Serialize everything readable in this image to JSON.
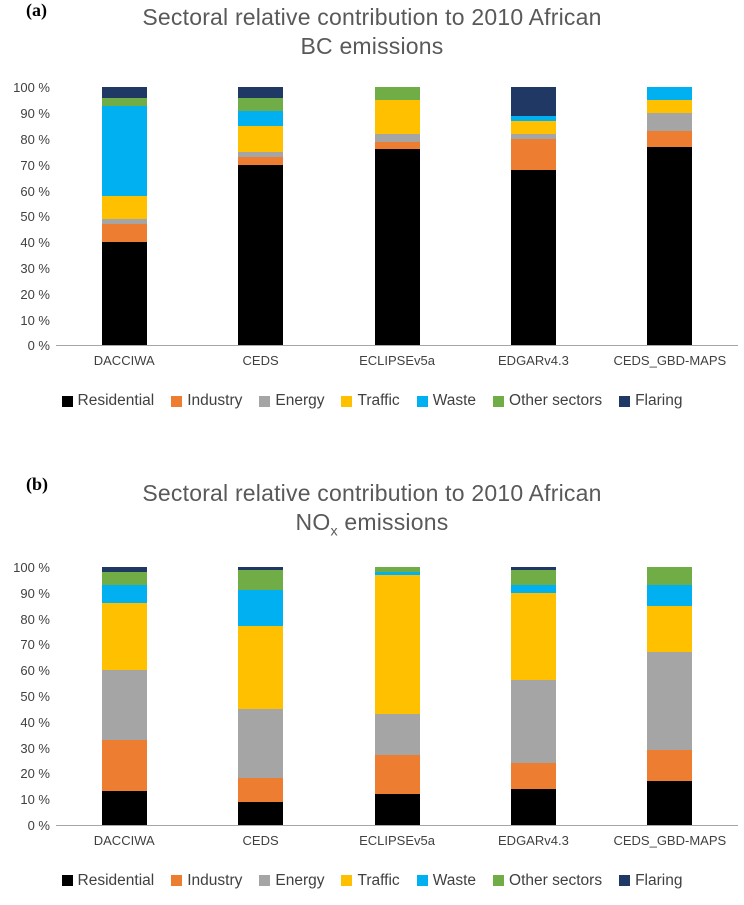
{
  "figure": {
    "panels": [
      {
        "label": "(a)"
      },
      {
        "label": "(b)"
      }
    ]
  },
  "chart_data": [
    {
      "type": "bar",
      "stacked": true,
      "panel_label": "(a)",
      "title": "Sectoral relative contribution to 2010 African BC emissions",
      "title_line1": "Sectoral relative contribution to 2010 African",
      "title_line2_parts": [
        {
          "text": "BC emissions"
        }
      ],
      "categories": [
        "DACCIWA",
        "CEDS",
        "ECLIPSEv5a",
        "EDGARv4.3",
        "CEDS_GBD-MAPS"
      ],
      "series": [
        {
          "name": "Residential",
          "color": "#000000",
          "values": [
            40,
            70,
            76,
            68,
            77
          ]
        },
        {
          "name": "Industry",
          "color": "#ED7D31",
          "values": [
            7,
            3,
            3,
            12,
            6
          ]
        },
        {
          "name": "Energy",
          "color": "#A5A5A5",
          "values": [
            2,
            2,
            3,
            2,
            7
          ]
        },
        {
          "name": "Traffic",
          "color": "#FFC000",
          "values": [
            9,
            10,
            13,
            5,
            5
          ]
        },
        {
          "name": "Waste",
          "color": "#00B0F0",
          "values": [
            35,
            6,
            0,
            2,
            5
          ]
        },
        {
          "name": "Other sectors",
          "color": "#70AD47",
          "values": [
            3,
            5,
            5,
            0,
            0
          ]
        },
        {
          "name": "Flaring",
          "color": "#1F3864",
          "values": [
            4,
            4,
            0,
            11,
            0
          ]
        }
      ],
      "ylim": [
        0,
        100
      ],
      "yticks": [
        0,
        10,
        20,
        30,
        40,
        50,
        60,
        70,
        80,
        90,
        100
      ],
      "ytick_suffix": " %",
      "grid": false,
      "legend_position": "bottom"
    },
    {
      "type": "bar",
      "stacked": true,
      "panel_label": "(b)",
      "title": "Sectoral relative contribution to 2010 African NOx emissions",
      "title_line1": "Sectoral relative contribution to 2010 African",
      "title_line2_parts": [
        {
          "text": "NO"
        },
        {
          "text": "x",
          "sub": true
        },
        {
          "text": " emissions"
        }
      ],
      "categories": [
        "DACCIWA",
        "CEDS",
        "ECLIPSEv5a",
        "EDGARv4.3",
        "CEDS_GBD-MAPS"
      ],
      "series": [
        {
          "name": "Residential",
          "color": "#000000",
          "values": [
            13,
            9,
            12,
            14,
            17
          ]
        },
        {
          "name": "Industry",
          "color": "#ED7D31",
          "values": [
            20,
            9,
            15,
            10,
            12
          ]
        },
        {
          "name": "Energy",
          "color": "#A5A5A5",
          "values": [
            27,
            27,
            16,
            32,
            38
          ]
        },
        {
          "name": "Traffic",
          "color": "#FFC000",
          "values": [
            26,
            32,
            54,
            34,
            18
          ]
        },
        {
          "name": "Waste",
          "color": "#00B0F0",
          "values": [
            7,
            14,
            1,
            3,
            8
          ]
        },
        {
          "name": "Other sectors",
          "color": "#70AD47",
          "values": [
            5,
            8,
            2,
            6,
            7
          ]
        },
        {
          "name": "Flaring",
          "color": "#1F3864",
          "values": [
            2,
            1,
            0,
            1,
            0
          ]
        }
      ],
      "ylim": [
        0,
        100
      ],
      "yticks": [
        0,
        10,
        20,
        30,
        40,
        50,
        60,
        70,
        80,
        90,
        100
      ],
      "ytick_suffix": " %",
      "grid": false,
      "legend_position": "bottom"
    }
  ]
}
